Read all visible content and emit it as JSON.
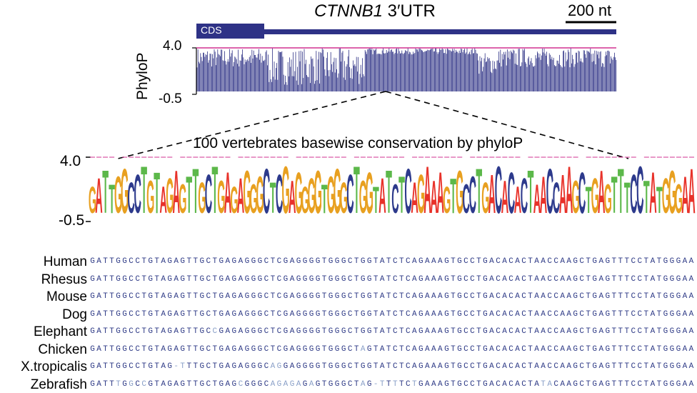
{
  "header": {
    "gene_name": "CTNNB1",
    "region_suffix": " 3′UTR",
    "scale_bar_label": "200 nt",
    "cds_label": "CDS"
  },
  "track": {
    "y_axis_label": "PhyloP",
    "y_max_label": "4.0",
    "y_min_label": "-0.5",
    "y_range": [
      -0.5,
      4.0
    ],
    "bar_color": "#2e3286",
    "top_line_color": "#d03090"
  },
  "zoom": {
    "title": "100 vertebrates basewise conservation by phyloP",
    "y_max_label": "4.0",
    "y_min_label": "-0.5"
  },
  "base_colors": {
    "A": "#e8322a",
    "C": "#2d3a8c",
    "G": "#e8a020",
    "T": "#5cb84a"
  },
  "consensus": "GATTGGCCTGTAGAGTTGCTGAGAGGGCTCGAGGGGTGGGCTGGTATCTCAGAAAGTGCCTGACACACTAACCAAGCTGAGTTTCCTATGGGAA",
  "alignment": [
    {
      "species": "Human",
      "sequence": "GATTGGCCTGTAGAGTTGCTGAGAGGGCTCGAGGGGTGGGCTGGTATCTCAGAAAGTGCCTGACACACTAACCAAGCTGAGTTTCCTATGGGAA"
    },
    {
      "species": "Rhesus",
      "sequence": "GATTGGCCTGTAGAGTTGCTGAGAGGGCTCGAGGGGTGGGCTGGTATCTCAGAAAGTGCCTGACACACTAACCAAGCTGAGTTTCCTATGGGAA"
    },
    {
      "species": "Mouse",
      "sequence": "GATTGGCCTGTAGAGTTGCTGAGAGGGCTCGAGGGGTGGGCTGGTATCTCAGAAAGTGCCTGACACACTAACCAAGCTGAGTTTCCTATGGGAA"
    },
    {
      "species": "Dog",
      "sequence": "GATTGGCCTGTAGAGTTGCTGAGAGGGCTCGAGGGGTGGGCTGGTATCTCAGAAAGTGCCTGACACACTAACCAAGCTGAGTTTCCTATGGGAA"
    },
    {
      "species": "Elephant",
      "sequence": "GATTGGCCTGTAGAGTTGCCGAGAGGGCTCGAGGGGTGGGCTGGTATCTCAGAAAGTGCCTGACACACTAACCAAGCTGAGTTTCCTATGGGAA"
    },
    {
      "species": "Chicken",
      "sequence": "GATTGGCCTGTAGAGTTGCTGAGAGGGCTCGAGGGGTGGGCTAGTATCTCAGAAAGTGCCTGACACACTAACCAAGCTGAGTTTCCTATGGGAA"
    },
    {
      "species": "X.tropicalis",
      "sequence": "GATTGGCCTGTAG-TTTGCTGAGAGGGCAGGAGGGGTGGGCTGGTATCTCAGAAAGTGCCTGACACACTAACCAAGCTGAGTTTCCTATGGGAA"
    },
    {
      "species": "Zebrafish",
      "sequence": "GATTTGGCCGTAGAGTTGCTGAGCGGGCAGAGAGAGTGGGCTAG-TTTTCTGAAAGTGCCTGACACACTATACAAGCTGAGTTTCCTATGGGAA"
    }
  ]
}
